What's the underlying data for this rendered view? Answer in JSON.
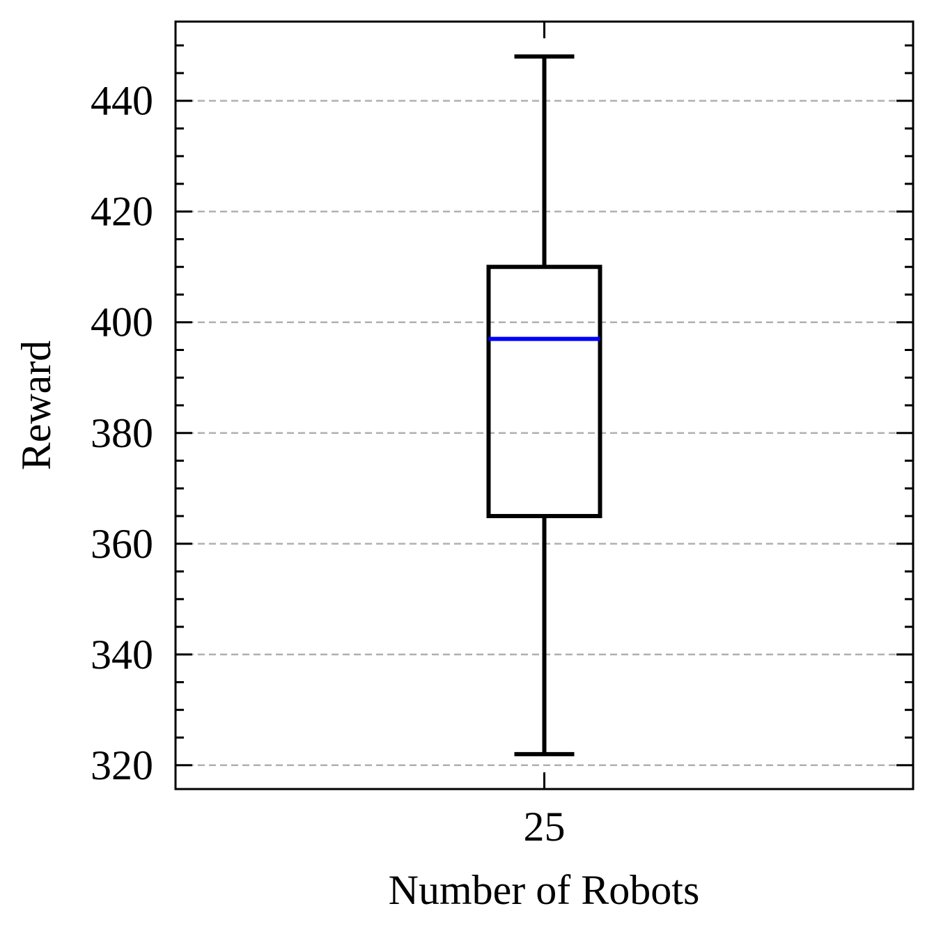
{
  "chart_data": {
    "type": "box",
    "xlabel": "Number of Robots",
    "ylabel": "Reward",
    "categories": [
      "25"
    ],
    "boxes": [
      {
        "category": "25",
        "whisker_low": 322,
        "q1": 365,
        "median": 397,
        "q3": 410,
        "whisker_high": 448
      }
    ],
    "ylim": [
      315.7,
      454.3
    ],
    "yticks": [
      320,
      340,
      360,
      380,
      400,
      420,
      440
    ],
    "ytick_labels": [
      "320",
      "340",
      "360",
      "380",
      "400",
      "420",
      "440"
    ],
    "minor_ytick_step": 5,
    "grid": "horizontal dashed",
    "colors": {
      "box": "#000000",
      "median": "#0000ff",
      "grid": "#b0b0b0"
    }
  }
}
